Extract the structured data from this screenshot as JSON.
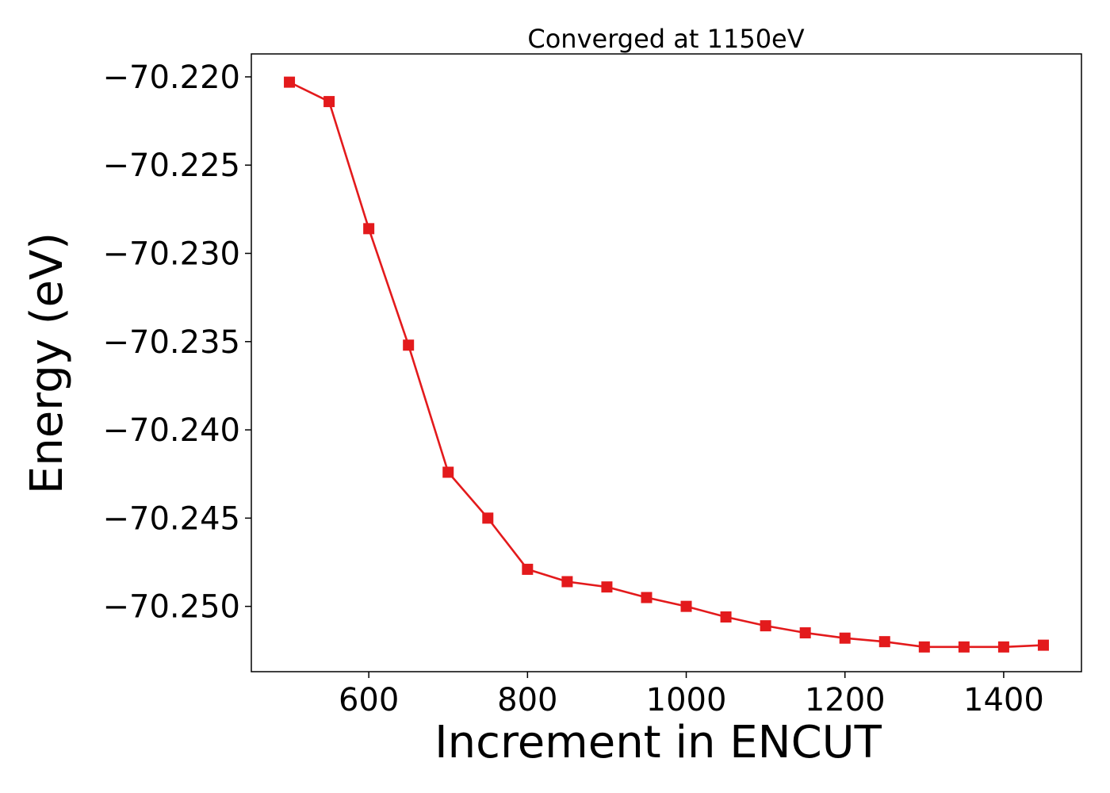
{
  "chart_data": {
    "type": "line",
    "title": "Converged at 1150eV",
    "xlabel": "Increment in ENCUT",
    "ylabel": "Energy (eV)",
    "xlim": [
      452,
      1498
    ],
    "ylim": [
      -70.2537,
      -70.2187
    ],
    "xticks": [
      600,
      800,
      1000,
      1200,
      1400
    ],
    "xtick_labels": [
      "600",
      "800",
      "1000",
      "1200",
      "1400"
    ],
    "yticks": [
      -70.22,
      -70.225,
      -70.23,
      -70.235,
      -70.24,
      -70.245,
      -70.25
    ],
    "ytick_labels": [
      "−70.220",
      "−70.225",
      "−70.230",
      "−70.235",
      "−70.240",
      "−70.245",
      "−70.250"
    ],
    "grid": false,
    "series": [
      {
        "color": "#e31a1c",
        "marker": "square",
        "x": [
          500,
          550,
          600,
          650,
          700,
          750,
          800,
          850,
          900,
          950,
          1000,
          1050,
          1100,
          1150,
          1200,
          1250,
          1300,
          1350,
          1400,
          1450
        ],
        "y": [
          -70.2203,
          -70.2214,
          -70.2286,
          -70.2352,
          -70.2424,
          -70.245,
          -70.2479,
          -70.2486,
          -70.2489,
          -70.2495,
          -70.25,
          -70.2506,
          -70.2511,
          -70.2515,
          -70.2518,
          -70.252,
          -70.2523,
          -70.2523,
          -70.2523,
          -70.2522
        ]
      }
    ]
  }
}
